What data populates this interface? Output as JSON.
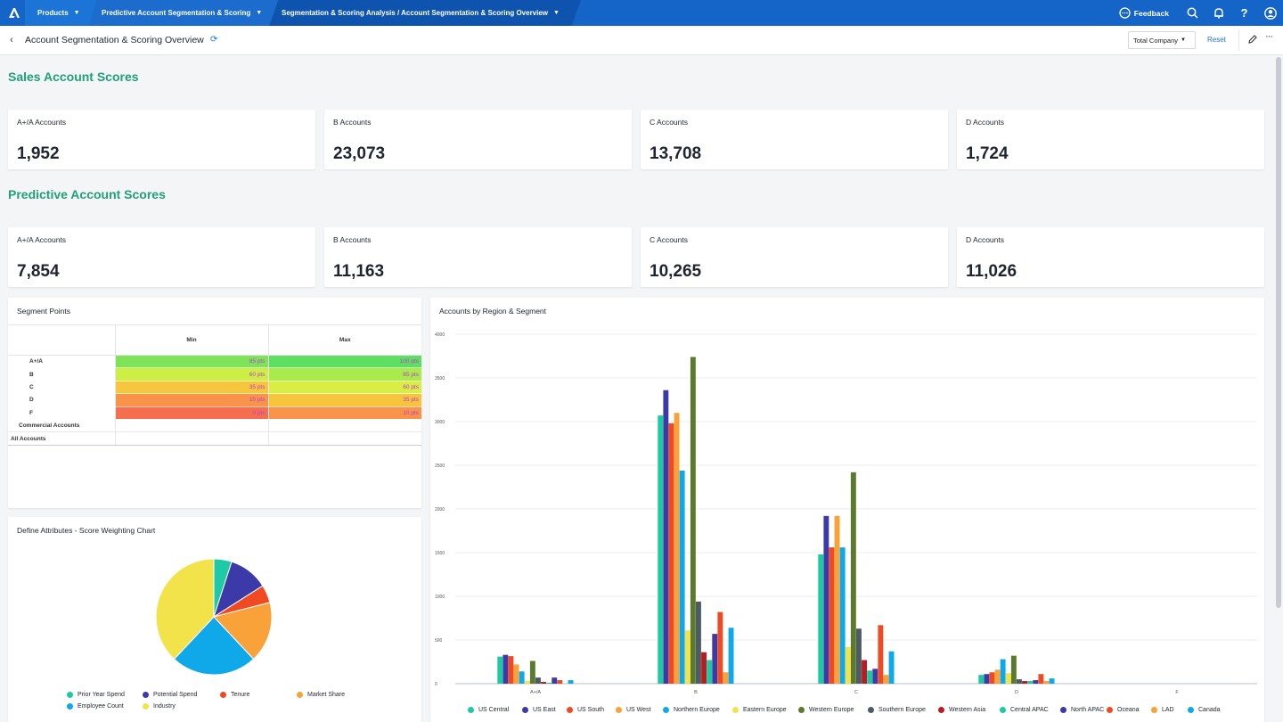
{
  "nav": {
    "breadcrumbs": [
      {
        "label": "Products"
      },
      {
        "label": "Predictive Account Segmentation & Scoring"
      },
      {
        "label": "Segmentation & Scoring Analysis / Account Segmentation & Scoring Overview"
      }
    ],
    "feedback_label": "Feedback",
    "icons": [
      "search-icon",
      "bell-icon",
      "help-icon",
      "user-icon"
    ]
  },
  "header": {
    "title": "Account Segmentation & Scoring Overview",
    "filter_value": "Total Company",
    "reset_label": "Reset"
  },
  "sales_scores": {
    "title": "Sales Account Scores",
    "cards": [
      {
        "label": "A+/A Accounts",
        "value": "1,952"
      },
      {
        "label": "B Accounts",
        "value": "23,073"
      },
      {
        "label": "C Accounts",
        "value": "13,708"
      },
      {
        "label": "D Accounts",
        "value": "1,724"
      }
    ]
  },
  "predictive_scores": {
    "title": "Predictive Account Scores",
    "cards": [
      {
        "label": "A+/A Accounts",
        "value": "7,854"
      },
      {
        "label": "B Accounts",
        "value": "11,163"
      },
      {
        "label": "C Accounts",
        "value": "10,265"
      },
      {
        "label": "D Accounts",
        "value": "11,026"
      }
    ]
  },
  "segment_points": {
    "title": "Segment Points",
    "columns": [
      "Min",
      "Max"
    ],
    "rows": [
      {
        "label": "A+/A",
        "min": "85 pts",
        "max": "100 pts",
        "min_color": "#7fe35a",
        "max_color": "#5fdf62"
      },
      {
        "label": "B",
        "min": "60 pts",
        "max": "85 pts",
        "min_color": "#cdef43",
        "max_color": "#a8eb4a"
      },
      {
        "label": "C",
        "min": "35 pts",
        "max": "60 pts",
        "min_color": "#f6c63c",
        "max_color": "#d9ee44"
      },
      {
        "label": "D",
        "min": "10 pts",
        "max": "35 pts",
        "min_color": "#f8944a",
        "max_color": "#f7c43e"
      },
      {
        "label": "F",
        "min": "0 pts",
        "max": "10 pts",
        "min_color": "#f56f4f",
        "max_color": "#f8944a"
      },
      {
        "label": "Commercial Accounts",
        "min": "",
        "max": ""
      },
      {
        "label": "All Accounts",
        "min": "",
        "max": ""
      }
    ]
  },
  "pie_panel": {
    "title": "Define Attributes - Score Weighting Chart",
    "chart_data": {
      "type": "pie",
      "slices": [
        {
          "name": "Prior Year Spend",
          "value": 5,
          "color": "#1fc9a5"
        },
        {
          "name": "Potential Spend",
          "value": 11,
          "color": "#3b3aa8"
        },
        {
          "name": "Tenure",
          "value": 5,
          "color": "#f04a23"
        },
        {
          "name": "Market Share",
          "value": 17,
          "color": "#f9a23a"
        },
        {
          "name": "Employee Count",
          "value": 24,
          "color": "#0fa9ea"
        },
        {
          "name": "Industry",
          "value": 38,
          "color": "#f3e34a"
        }
      ],
      "legend": "bottom"
    }
  },
  "bar_panel": {
    "title": "Accounts by Region & Segment",
    "chart_data": {
      "type": "bar",
      "categories": [
        "A+/A",
        "B",
        "C",
        "D",
        "F"
      ],
      "ylim": [
        0,
        4000
      ],
      "yticks": [
        "0",
        "500",
        "1000",
        "1500",
        "2000",
        "2500",
        "3000",
        "3500",
        "4000"
      ],
      "grid": true,
      "legend": "bottom",
      "series": [
        {
          "name": "US Central",
          "color": "#1cc9a0",
          "values": [
            310,
            3070,
            1480,
            100,
            0
          ]
        },
        {
          "name": "US East",
          "color": "#3b3aa8",
          "values": [
            330,
            3360,
            1920,
            110,
            0
          ]
        },
        {
          "name": "US South",
          "color": "#f04a23",
          "values": [
            315,
            2980,
            1560,
            130,
            0
          ]
        },
        {
          "name": "US West",
          "color": "#f9a23a",
          "values": [
            220,
            3100,
            1920,
            160,
            0
          ]
        },
        {
          "name": "Northern Europe",
          "color": "#0fa9ea",
          "values": [
            140,
            2440,
            1560,
            280,
            0
          ]
        },
        {
          "name": "Eastern Europe",
          "color": "#f3e34a",
          "values": [
            30,
            610,
            420,
            120,
            0
          ]
        },
        {
          "name": "Western Europe",
          "color": "#5b7a2b",
          "values": [
            260,
            3740,
            2420,
            320,
            0
          ]
        },
        {
          "name": "Southern Europe",
          "color": "#4d5b66",
          "values": [
            70,
            940,
            630,
            50,
            0
          ]
        },
        {
          "name": "Western Asia",
          "color": "#b81c20",
          "values": [
            20,
            360,
            270,
            30,
            0
          ]
        },
        {
          "name": "Central APAC",
          "color": "#1cc9a0",
          "values": [
            10,
            270,
            150,
            30,
            0
          ]
        },
        {
          "name": "North APAC",
          "color": "#3b3aa8",
          "values": [
            70,
            570,
            170,
            40,
            0
          ]
        },
        {
          "name": "Oceana",
          "color": "#f04a23",
          "values": [
            40,
            820,
            670,
            110,
            0
          ]
        },
        {
          "name": "LAD",
          "color": "#f9a23a",
          "values": [
            0,
            130,
            100,
            30,
            0
          ]
        },
        {
          "name": "Canada",
          "color": "#0fa9ea",
          "values": [
            40,
            640,
            370,
            60,
            0
          ]
        }
      ]
    }
  }
}
